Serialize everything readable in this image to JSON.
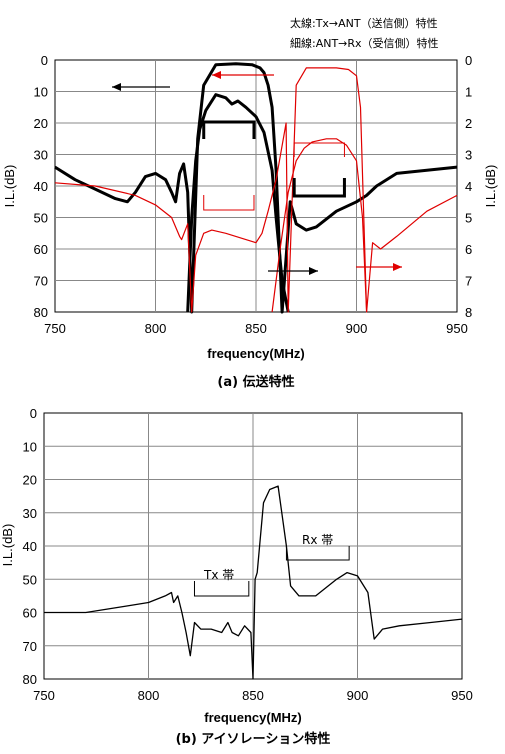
{
  "legend_notes": {
    "thick": "太線:Tx→ANT（送信側）特性",
    "thin": "細線:ANT→Rx（受信側）特性"
  },
  "chart_data": [
    {
      "type": "line",
      "caption": "(a)  伝送特性",
      "xlabel": "frequency(MHz)",
      "ylabel_left": "I.L.(dB)",
      "ylabel_right": "I.L.(dB)",
      "xlim": [
        750,
        950
      ],
      "ylim_left": [
        0,
        80
      ],
      "ylim_right": [
        0,
        8
      ],
      "y_inverted": true,
      "grid": true,
      "x_ticks": [
        "750",
        "800",
        "850",
        "900",
        "950"
      ],
      "y_ticks_left": [
        "0",
        "10",
        "20",
        "30",
        "40",
        "50",
        "60",
        "70",
        "80"
      ],
      "y_ticks_right": [
        "0",
        "1",
        "2",
        "3",
        "4",
        "5",
        "6",
        "7",
        "8"
      ],
      "colors": {
        "thick": "#000000",
        "thin": "#e00000"
      },
      "series": [
        {
          "line": "thick",
          "color": "#000000",
          "axis": "left",
          "x": [
            750,
            760,
            770,
            780,
            786,
            790,
            795,
            800,
            805,
            808,
            810,
            812,
            814,
            816,
            818,
            821,
            824,
            830,
            840,
            848,
            852,
            854,
            856,
            858,
            860,
            863,
            867,
            870,
            875,
            880,
            890,
            900,
            905,
            910,
            920,
            935,
            950
          ],
          "y": [
            34,
            38,
            41,
            44,
            45,
            42,
            37,
            36,
            38,
            42,
            45,
            36,
            33,
            42,
            80,
            25,
            8,
            1.5,
            1.2,
            1.5,
            2.5,
            4,
            8,
            15,
            35,
            80,
            45,
            52,
            54,
            53,
            48,
            45,
            43,
            40,
            36,
            35,
            34
          ]
        },
        {
          "line": "thick-minor",
          "color": "#000000",
          "axis": "right",
          "x": [
            816,
            818,
            820,
            822,
            825,
            830,
            835,
            838,
            841,
            845,
            850,
            854,
            858,
            860,
            863,
            866
          ],
          "y": [
            8,
            5,
            3.2,
            2.2,
            1.6,
            1.1,
            1.2,
            1.4,
            1.3,
            1.5,
            1.8,
            2.3,
            3.5,
            5,
            7,
            8
          ]
        },
        {
          "line": "thin",
          "color": "#e00000",
          "axis": "left",
          "x": [
            750,
            770,
            790,
            800,
            808,
            812,
            813,
            816,
            818,
            820,
            824,
            828,
            835,
            845,
            850,
            853,
            856,
            860,
            865,
            866,
            870,
            875,
            890,
            896,
            900,
            902,
            905,
            908,
            912,
            920,
            935,
            950
          ],
          "y": [
            39,
            40,
            43,
            46,
            50,
            56,
            57,
            52,
            80,
            62,
            55,
            54,
            55,
            57,
            58,
            55,
            48,
            38,
            20,
            80,
            8,
            2.5,
            2.5,
            3,
            5,
            15,
            80,
            58,
            60,
            56,
            48,
            43
          ]
        },
        {
          "line": "thin-minor",
          "color": "#e00000",
          "axis": "right",
          "x": [
            858,
            862,
            866,
            870,
            874,
            878,
            885,
            890,
            895,
            900,
            903,
            905
          ],
          "y": [
            8,
            6,
            4.2,
            3.2,
            2.8,
            2.6,
            2.5,
            2.5,
            2.7,
            3.2,
            5,
            8
          ]
        }
      ],
      "annotations": {
        "tx_band": [
          824,
          849
        ],
        "rx_band": [
          869,
          894
        ]
      }
    },
    {
      "type": "line",
      "caption": "(b)  アイソレーション特性",
      "xlabel": "frequency(MHz)",
      "ylabel": "I.L.(dB)",
      "xlim": [
        750,
        950
      ],
      "ylim": [
        0,
        80
      ],
      "y_inverted": true,
      "grid": true,
      "x_ticks": [
        "750",
        "800",
        "850",
        "900",
        "950"
      ],
      "y_ticks": [
        "0",
        "10",
        "20",
        "30",
        "40",
        "50",
        "60",
        "70",
        "80"
      ],
      "band_labels": [
        "Tx 帯",
        "Rx 帯"
      ],
      "series": [
        {
          "color": "#000000",
          "x": [
            750,
            770,
            790,
            800,
            808,
            811,
            812,
            814,
            816,
            818,
            820,
            822,
            825,
            830,
            835,
            838,
            840,
            843,
            846,
            849,
            850,
            851,
            852,
            855,
            858,
            862,
            866,
            868,
            872,
            880,
            890,
            895,
            900,
            905,
            908,
            912,
            920,
            935,
            950
          ],
          "y": [
            60,
            60,
            58,
            57,
            55,
            54,
            57,
            55,
            60,
            66,
            73,
            63,
            65,
            65,
            66,
            63,
            66,
            67,
            64,
            66,
            80,
            50,
            48,
            27,
            23,
            22,
            40,
            52,
            55,
            55,
            50,
            48,
            49,
            54,
            68,
            65,
            64,
            63,
            62
          ]
        }
      ],
      "annotations": {
        "tx_band": [
          822,
          848
        ],
        "rx_band": [
          866,
          896
        ]
      }
    }
  ]
}
